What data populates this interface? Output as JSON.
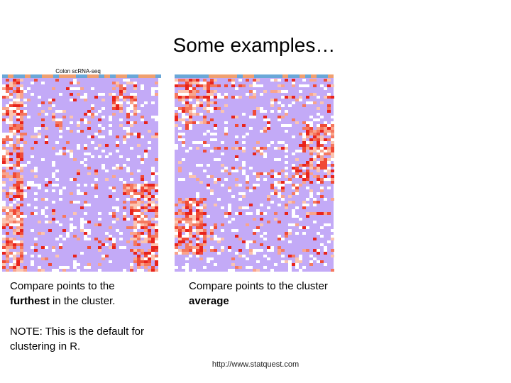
{
  "title": "Some examples…",
  "panels": [
    {
      "image_label": "Colon scRNA-seq",
      "caption": [
        {
          "text": "Compare points to the "
        },
        {
          "text": "furthest",
          "bold": true
        },
        {
          "text": " in the cluster."
        }
      ]
    },
    {
      "caption": [
        {
          "text": "Compare points to the cluster "
        },
        {
          "text": "average",
          "bold": true
        }
      ]
    }
  ],
  "note": "NOTE: This is the default for clustering in R.",
  "footer": "http://www.statquest.com"
}
